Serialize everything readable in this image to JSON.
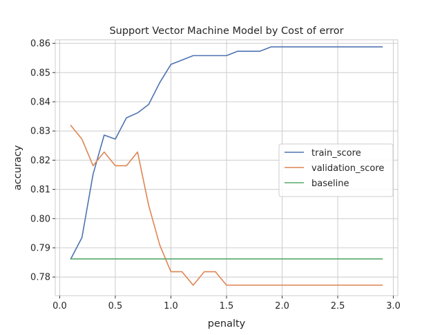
{
  "chart_data": {
    "type": "line",
    "title": "Support Vector Machine Model by Cost of error",
    "xlabel": "penalty",
    "ylabel": "accuracy",
    "xlim": [
      -0.04,
      3.04
    ],
    "ylim": [
      0.7736,
      0.8612
    ],
    "xticks": [
      0.0,
      0.5,
      1.0,
      1.5,
      2.0,
      2.5,
      3.0
    ],
    "xtick_labels": [
      "0.0",
      "0.5",
      "1.0",
      "1.5",
      "2.0",
      "2.5",
      "3.0"
    ],
    "yticks": [
      0.78,
      0.79,
      0.8,
      0.81,
      0.82,
      0.83,
      0.84,
      0.85,
      0.86
    ],
    "ytick_labels": [
      "0.78",
      "0.79",
      "0.80",
      "0.81",
      "0.82",
      "0.83",
      "0.84",
      "0.85",
      "0.86"
    ],
    "grid": true,
    "legend_position": "center-right",
    "x": [
      0.1,
      0.2,
      0.3,
      0.4,
      0.5,
      0.6,
      0.7,
      0.8,
      0.9,
      1.0,
      1.1,
      1.2,
      1.3,
      1.4,
      1.5,
      1.6,
      1.7,
      1.8,
      1.9,
      2.0,
      2.1,
      2.2,
      2.3,
      2.4,
      2.5,
      2.6,
      2.7,
      2.8,
      2.9
    ],
    "series": [
      {
        "name": "train_score",
        "color": "#4c72b0",
        "values": [
          0.7862,
          0.7935,
          0.8152,
          0.8286,
          0.8272,
          0.8345,
          0.8362,
          0.8391,
          0.8466,
          0.8528,
          0.8543,
          0.8558,
          0.8558,
          0.8558,
          0.8558,
          0.8573,
          0.8573,
          0.8573,
          0.8588,
          0.8588,
          0.8588,
          0.8588,
          0.8588,
          0.8588,
          0.8588,
          0.8588,
          0.8588,
          0.8588,
          0.8588
        ]
      },
      {
        "name": "validation_score",
        "color": "#dd8452",
        "values": [
          0.8319,
          0.8272,
          0.8181,
          0.8228,
          0.8181,
          0.8181,
          0.8228,
          0.8045,
          0.7909,
          0.7818,
          0.7818,
          0.7772,
          0.7818,
          0.7818,
          0.7772,
          0.7772,
          0.7772,
          0.7772,
          0.7772,
          0.7772,
          0.7772,
          0.7772,
          0.7772,
          0.7772,
          0.7772,
          0.7772,
          0.7772,
          0.7772,
          0.7772
        ]
      },
      {
        "name": "baseline",
        "color": "#55a868",
        "values": [
          0.7862,
          0.7862,
          0.7862,
          0.7862,
          0.7862,
          0.7862,
          0.7862,
          0.7862,
          0.7862,
          0.7862,
          0.7862,
          0.7862,
          0.7862,
          0.7862,
          0.7862,
          0.7862,
          0.7862,
          0.7862,
          0.7862,
          0.7862,
          0.7862,
          0.7862,
          0.7862,
          0.7862,
          0.7862,
          0.7862,
          0.7862,
          0.7862,
          0.7862
        ]
      }
    ]
  }
}
